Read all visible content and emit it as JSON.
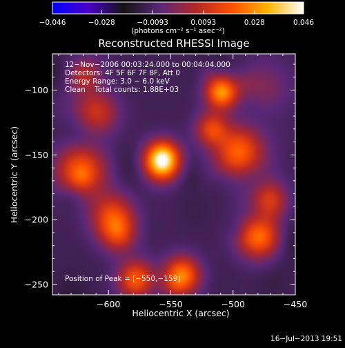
{
  "chart_data": {
    "type": "heatmap",
    "title": "Reconstructed RHESSI Image",
    "xlabel": "Heliocentric X (arcsec)",
    "ylabel": "Heliocentric Y (arcsec)",
    "xlim": [
      -645,
      -450
    ],
    "ylim": [
      -258,
      -72
    ],
    "xticks": [
      -600,
      -550,
      -500,
      -450
    ],
    "xtick_labels": [
      "−600",
      "−550",
      "−500",
      "−450"
    ],
    "yticks": [
      -100,
      -150,
      -200,
      -250
    ],
    "ytick_labels": [
      "−100",
      "−150",
      "−200",
      "−250"
    ],
    "colorbar": {
      "min": -0.046,
      "max": 0.046,
      "ticks": [
        -0.046,
        -0.028,
        -0.0093,
        0.0093,
        0.028,
        0.046
      ],
      "tick_labels": [
        "−0.046",
        "−0.028",
        "−0.0093",
        "0.0093",
        "0.028",
        "0.046"
      ],
      "unit_text": "(photons cm⁻² s⁻¹ asec⁻²)",
      "colors": [
        "#0000ff",
        "#4b00c8",
        "#141414",
        "#5a2878",
        "#b42828",
        "#ff5000",
        "#ffb400",
        "#ffffff"
      ]
    },
    "annotations": [
      "12−Nov−2006 00:03:24.000 to 00:04:04.000",
      "Detectors: 4F 5F 6F 7F 8F, Att 0",
      "Energy Range: 3.0 − 6.0 keV",
      "Clean    Total counts: 1.88E+03"
    ],
    "peak_label": "Position of Peak = [−550,−159]",
    "peak": {
      "x": -550,
      "y": -159,
      "value": 0.046
    },
    "sources": [
      {
        "x": -557,
        "y": -155,
        "sigma": 10,
        "amp": 1.0
      },
      {
        "x": -509,
        "y": -101,
        "sigma": 9,
        "amp": 0.75
      },
      {
        "x": -541,
        "y": -243,
        "sigma": 10,
        "amp": 0.65
      },
      {
        "x": -578,
        "y": -246,
        "sigma": 10,
        "amp": 0.55
      },
      {
        "x": -622,
        "y": -162,
        "sigma": 14,
        "amp": 0.55
      },
      {
        "x": -597,
        "y": -197,
        "sigma": 12,
        "amp": 0.45
      },
      {
        "x": -495,
        "y": -147,
        "sigma": 13,
        "amp": 0.55
      },
      {
        "x": -480,
        "y": -213,
        "sigma": 12,
        "amp": 0.5
      },
      {
        "x": -610,
        "y": -118,
        "sigma": 12,
        "amp": 0.42
      },
      {
        "x": -517,
        "y": -130,
        "sigma": 9,
        "amp": 0.45
      },
      {
        "x": -470,
        "y": -185,
        "sigma": 10,
        "amp": 0.45
      },
      {
        "x": -620,
        "y": -89,
        "sigma": 9,
        "amp": 0.3
      },
      {
        "x": -592,
        "y": -211,
        "sigma": 10,
        "amp": 0.35
      }
    ],
    "timestamp": "16−Jul−2013 19:51"
  }
}
